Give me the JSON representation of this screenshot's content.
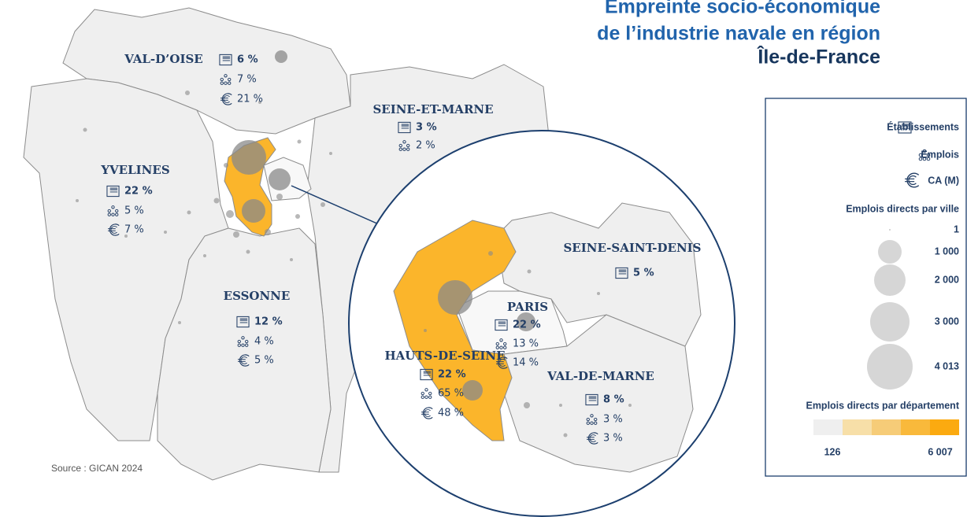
{
  "title": {
    "line1": "Empreinte socio-économique",
    "line2": "de l’industrie navale en région",
    "line3": "Île-de-France"
  },
  "departments": [
    {
      "name": "VAL-D’OISE",
      "etablissements": "6 %",
      "emplois": "7 %",
      "ca": "21 %"
    },
    {
      "name": "SEINE-ET-MARNE",
      "etablissements": "3 %",
      "emplois": "2 %"
    },
    {
      "name": "YVELINES",
      "etablissements": "22 %",
      "emplois": "5 %",
      "ca": "7 %"
    },
    {
      "name": "ESSONNE",
      "etablissements": "12 %",
      "emplois": "4 %",
      "ca": "5 %"
    },
    {
      "name": "PARIS",
      "etablissements": "22 %",
      "emplois": "13 %",
      "ca": "14 %"
    },
    {
      "name": "HAUTS-DE-SEINE",
      "etablissements": "22 %",
      "emplois": "65 %",
      "ca": "48 %"
    },
    {
      "name": "SEINE-SAINT-DENIS",
      "etablissements": "5 %"
    },
    {
      "name": "VAL-DE-MARNE",
      "etablissements": "8 %",
      "emplois": "3 %",
      "ca": "3 %"
    }
  ],
  "legend": {
    "etablissements": "Établissements",
    "emplois": "Emplois",
    "ca": "CA (M)",
    "city_title": "Emplois directs par ville",
    "city_sizes": [
      "1",
      "1 000",
      "2 000",
      "3 000",
      "4 013"
    ],
    "dept_title": "Emplois directs par département",
    "dept_min": "126",
    "dept_max": "6 007"
  },
  "source": "Source : GICAN 2024"
}
